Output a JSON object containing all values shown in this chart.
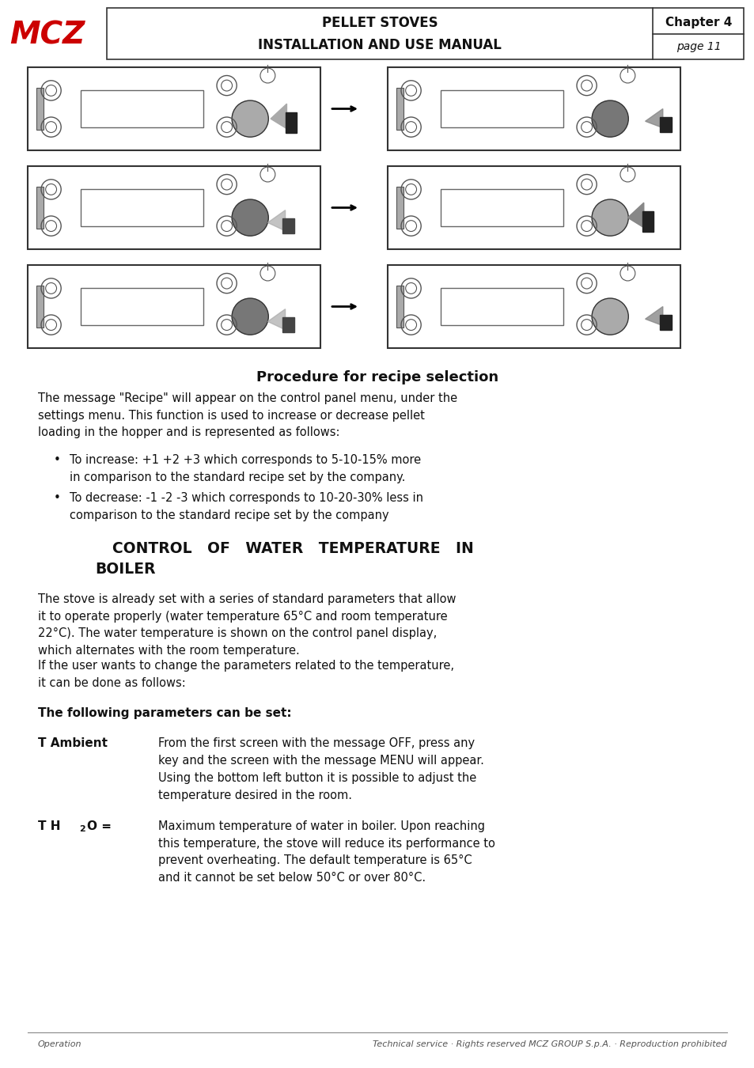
{
  "page_bg": "#ffffff",
  "header": {
    "logo_text": "MCZ",
    "logo_color": "#cc0000",
    "title1": "PELLET STOVES",
    "title2": "INSTALLATION AND USE MANUAL",
    "chapter": "Chapter 4",
    "page": "page 11"
  },
  "section1_title": "Procedure for recipe selection",
  "section1_para": "The message \"Recipe\" will appear on the control panel menu, under the\nsettings menu. This function is used to increase or decrease pellet\nloading in the hopper and is represented as follows:",
  "bullet1_title": "To increase: +1 +2 +3 which corresponds to 5-10-15% more\nin comparison to the standard recipe set by the company.",
  "bullet2_title": "To decrease: -1 -2 -3 which corresponds to 10-20-30% less in\ncomparison to the standard recipe set by the company",
  "section2_title": "CONTROL   OF   WATER   TEMPERATURE   IN\nBOILER",
  "section2_para1": "The stove is already set with a series of standard parameters that allow\nit to operate properly (water temperature 65°C and room temperature\n22°C). The water temperature is shown on the control panel display,\nwhich alternates with the room temperature.",
  "section2_para2": "If the user wants to change the parameters related to the temperature,\nit can be done as follows:",
  "params_title": "The following parameters can be set:",
  "t_ambient_label": "T Ambient",
  "t_ambient_text1": "From the first screen with the message OFF, press any\nkey and the screen with the message MENU will appear.",
  "t_ambient_text2": "Using the bottom left button it is possible to adjust the\ntemperature desired in the room.",
  "th2o_label_bold": "T H",
  "th2o_label_sub": "2",
  "th2o_label_end": "O =",
  "th2o_text": "Maximum temperature of water in boiler. Upon reaching\nthis temperature, the stove will reduce its performance to\nprevent overheating. The default temperature is 65°C\nand it cannot be set below 50°C or over 80°C.",
  "footer_left": "Operation",
  "footer_right": "Technical service · Rights reserved MCZ GROUP S.p.A. · Reproduction prohibited"
}
